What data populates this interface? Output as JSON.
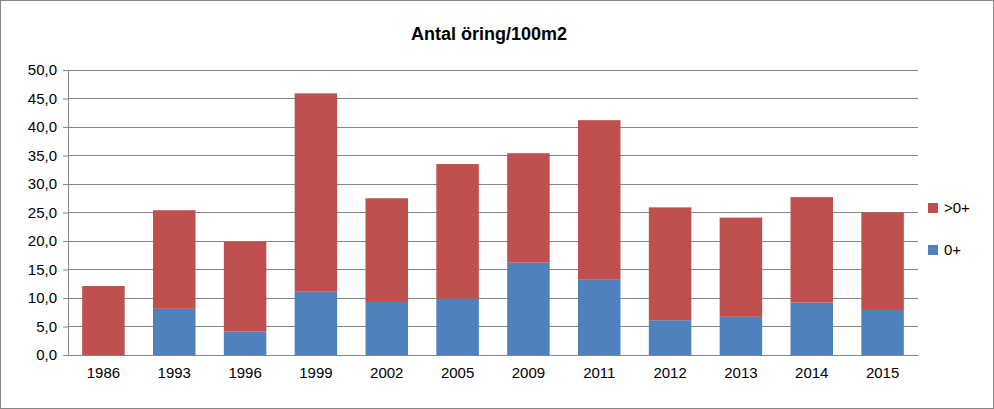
{
  "chart_data": {
    "type": "bar",
    "title": "Antal öring/100m2",
    "stacked": true,
    "grid": true,
    "legend": "right",
    "categories": [
      "1986",
      "1993",
      "1996",
      "1999",
      "2002",
      "2005",
      "2009",
      "2011",
      "2012",
      "2013",
      "2014",
      "2015"
    ],
    "series": [
      {
        "name": "0+",
        "color": "#4f81bd",
        "values": [
          0,
          8.1,
          4.1,
          11.1,
          9.3,
          9.9,
          16.2,
          13.2,
          6.1,
          6.7,
          9.2,
          7.9
        ]
      },
      {
        "name": ">0+",
        "color": "#c0504d",
        "values": [
          12.1,
          17.3,
          15.8,
          34.8,
          18.2,
          23.6,
          19.2,
          28.0,
          19.8,
          17.4,
          18.5,
          17.1
        ]
      }
    ],
    "ylim": [
      0,
      50
    ],
    "yticks": [
      {
        "value": 0,
        "label": "0,0"
      },
      {
        "value": 5,
        "label": "5,0"
      },
      {
        "value": 10,
        "label": "10,0"
      },
      {
        "value": 15,
        "label": "15,0"
      },
      {
        "value": 20,
        "label": "20,0"
      },
      {
        "value": 25,
        "label": "25,0"
      },
      {
        "value": 30,
        "label": "30,0"
      },
      {
        "value": 35,
        "label": "35,0"
      },
      {
        "value": 40,
        "label": "40,0"
      },
      {
        "value": 45,
        "label": "45,0"
      },
      {
        "value": 50,
        "label": "50,0"
      }
    ]
  }
}
